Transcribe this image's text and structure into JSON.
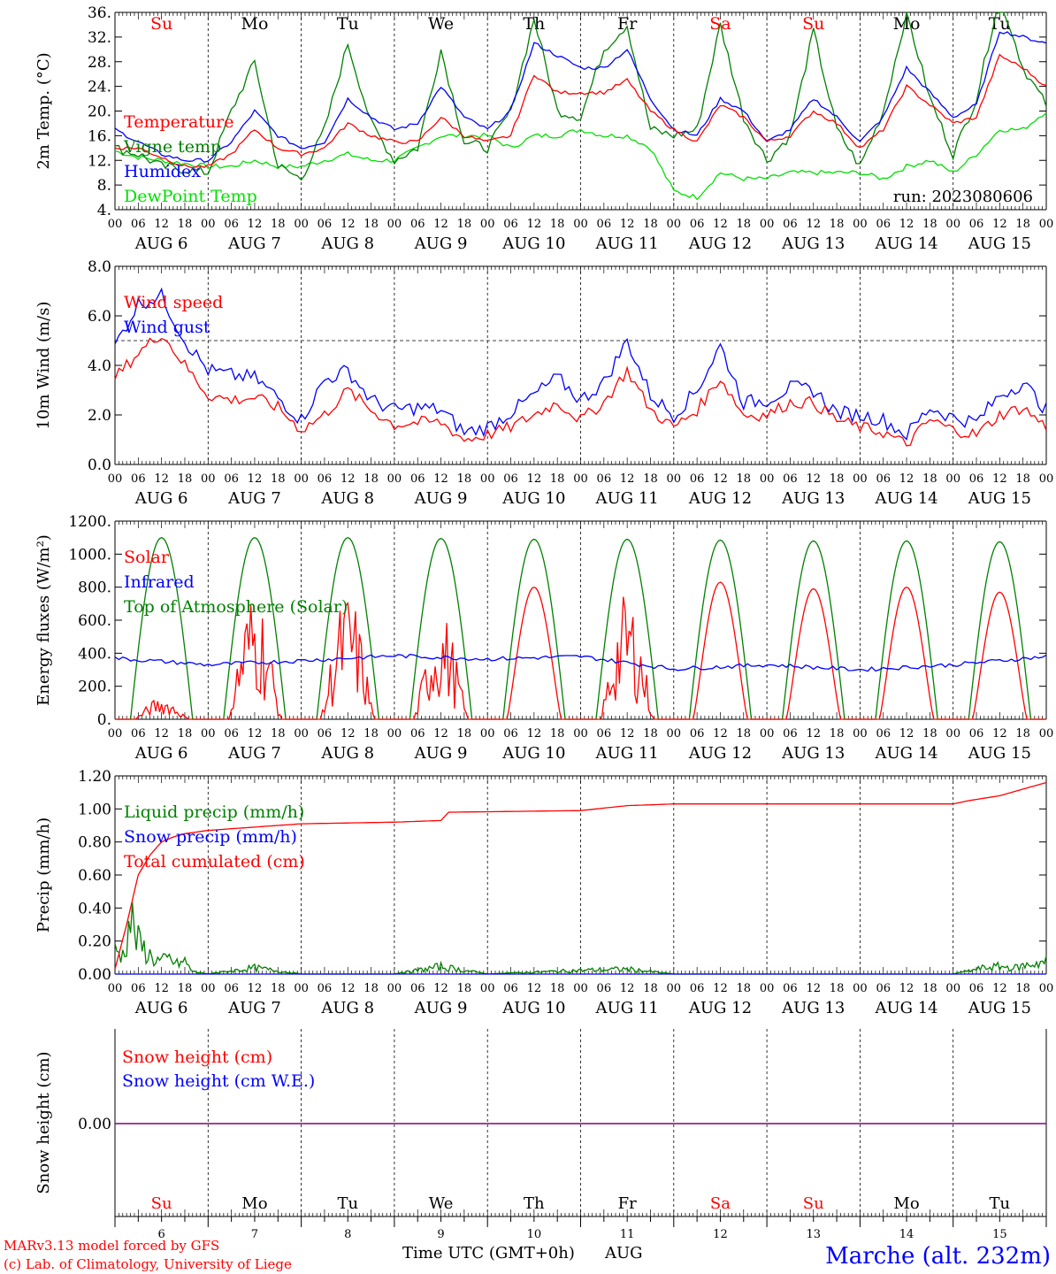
{
  "days": [
    {
      "abbr": "Su",
      "date": "AUG  6",
      "num": "6",
      "weekend": true
    },
    {
      "abbr": "Mo",
      "date": "AUG  7",
      "num": "7",
      "weekend": false
    },
    {
      "abbr": "Tu",
      "date": "AUG  8",
      "num": "8",
      "weekend": false
    },
    {
      "abbr": "We",
      "date": "AUG  9",
      "num": "9",
      "weekend": false
    },
    {
      "abbr": "Th",
      "date": "AUG 10",
      "num": "10",
      "weekend": false
    },
    {
      "abbr": "Fr",
      "date": "AUG 11",
      "num": "11",
      "weekend": false
    },
    {
      "abbr": "Sa",
      "date": "AUG 12",
      "num": "12",
      "weekend": true
    },
    {
      "abbr": "Su",
      "date": "AUG 13",
      "num": "13",
      "weekend": true
    },
    {
      "abbr": "Mo",
      "date": "AUG 14",
      "num": "14",
      "weekend": false
    },
    {
      "abbr": "Tu",
      "date": "AUG 15",
      "num": "15",
      "weekend": false
    }
  ],
  "hour_ticks": [
    "00",
    "06",
    "12",
    "18"
  ],
  "final_hour_tick": "00",
  "colors": {
    "red": "#ff0000",
    "green": "#008000",
    "blue": "#0000ff",
    "lightgreen": "#00e000",
    "purple": "#800080",
    "weekend": "#ff0000",
    "weekday": "#000000"
  },
  "footer": {
    "model": "MARv3.13 model forced by GFS",
    "lab": "(c) Lab. of Climatology, University of Liege",
    "axis_title": "Time UTC (GMT+0h)",
    "month": "AUG",
    "station": "Marche (alt. 232m)"
  },
  "chart_data": [
    {
      "type": "line",
      "ylabel": "2m Temp. (°C)",
      "ylim": [
        4,
        36
      ],
      "yticks": [
        4,
        8,
        12,
        16,
        20,
        24,
        28,
        32,
        36
      ],
      "ytick_labels": [
        "4.",
        "8.",
        "12.",
        "16.",
        "20.",
        "24.",
        "28.",
        "32.",
        "36."
      ],
      "annotation": "run: 2023080606",
      "x_unit": "hours since AUG 6 00 UTC",
      "series": [
        {
          "name": "Temperature",
          "color": "#ff0000",
          "x": [
            0,
            6,
            12,
            18,
            24,
            30,
            36,
            42,
            48,
            54,
            60,
            66,
            72,
            78,
            84,
            90,
            96,
            102,
            108,
            114,
            120,
            126,
            132,
            138,
            144,
            150,
            156,
            162,
            168,
            174,
            180,
            186,
            192,
            198,
            204,
            210,
            216,
            222,
            228,
            234,
            240
          ],
          "y": [
            14,
            14,
            12.5,
            11,
            11,
            13,
            17,
            14,
            13,
            14,
            18,
            16,
            15,
            15,
            19,
            16,
            15,
            16,
            26,
            23,
            23,
            23,
            25,
            20,
            17,
            15,
            21,
            19,
            15,
            16,
            20,
            18,
            14,
            17,
            24,
            21,
            18,
            19,
            29,
            27,
            24
          ]
        },
        {
          "name": "Vigne temp",
          "color": "#008000",
          "x": [
            0,
            6,
            12,
            18,
            24,
            30,
            36,
            42,
            48,
            54,
            60,
            66,
            72,
            78,
            84,
            90,
            96,
            102,
            108,
            114,
            120,
            126,
            132,
            138,
            144,
            150,
            156,
            162,
            168,
            174,
            180,
            186,
            192,
            198,
            204,
            210,
            216,
            222,
            228,
            234,
            240
          ],
          "y": [
            14,
            13,
            11,
            10.5,
            10,
            20,
            28,
            11,
            9,
            17,
            31,
            18,
            12,
            14,
            30,
            15,
            14,
            20,
            35,
            20,
            19,
            30,
            34,
            17,
            16,
            17,
            34,
            19,
            12,
            16,
            33,
            17,
            11,
            20,
            36,
            22,
            13,
            22,
            39,
            27,
            21
          ]
        },
        {
          "name": "Humidex",
          "color": "#0000ff",
          "x": [
            0,
            6,
            12,
            18,
            24,
            30,
            36,
            42,
            48,
            54,
            60,
            66,
            72,
            78,
            84,
            90,
            96,
            102,
            108,
            114,
            120,
            126,
            132,
            138,
            144,
            150,
            156,
            162,
            168,
            174,
            180,
            186,
            192,
            198,
            204,
            210,
            216,
            222,
            228,
            234,
            240
          ],
          "y": [
            17,
            15,
            13,
            12,
            12,
            15,
            20,
            16,
            14,
            15,
            22,
            19,
            17,
            18,
            24,
            19,
            17,
            20,
            31,
            29,
            27,
            27,
            30,
            22,
            17,
            16,
            22,
            20,
            15,
            17,
            22,
            19,
            15,
            19,
            27,
            23,
            19,
            21,
            33,
            32,
            31
          ]
        },
        {
          "name": "DewPoint Temp",
          "color": "#00e000",
          "x": [
            0,
            6,
            12,
            18,
            24,
            30,
            36,
            42,
            48,
            54,
            60,
            66,
            72,
            78,
            84,
            90,
            96,
            102,
            108,
            114,
            120,
            126,
            132,
            138,
            144,
            150,
            156,
            162,
            168,
            174,
            180,
            186,
            192,
            198,
            204,
            210,
            216,
            222,
            228,
            234,
            240
          ],
          "y": [
            13.5,
            12.5,
            12,
            11.5,
            11,
            11,
            12,
            11,
            11,
            12,
            13,
            12,
            12,
            14,
            16,
            16,
            16,
            14,
            16,
            16,
            17,
            16,
            16,
            14,
            7,
            6,
            10,
            9,
            9,
            10,
            10,
            10,
            10,
            9,
            11,
            12,
            10,
            13,
            17,
            17,
            20
          ]
        }
      ]
    },
    {
      "type": "line",
      "ylabel": "10m Wind (m/s)",
      "ylim": [
        0,
        8
      ],
      "yticks": [
        0,
        2,
        4,
        6,
        8
      ],
      "ytick_labels": [
        "0.0",
        "2.0",
        "4.0",
        "6.0",
        "8.0"
      ],
      "reference_line": 5,
      "x_unit": "hours since AUG 6 00 UTC",
      "series": [
        {
          "name": "Wind speed",
          "color": "#ff0000",
          "x": [
            0,
            6,
            12,
            18,
            24,
            30,
            36,
            42,
            48,
            54,
            60,
            66,
            72,
            78,
            84,
            90,
            96,
            102,
            108,
            114,
            120,
            126,
            132,
            138,
            144,
            150,
            156,
            162,
            168,
            174,
            180,
            186,
            192,
            198,
            204,
            210,
            216,
            222,
            228,
            234,
            240
          ],
          "y": [
            3.5,
            4.5,
            5.3,
            4,
            2.8,
            2.6,
            2.7,
            2.3,
            1.4,
            2,
            3,
            2.2,
            1.6,
            1.7,
            1.7,
            1,
            1.2,
            1.5,
            2,
            2.5,
            1.8,
            2.5,
            3.8,
            2.2,
            1.5,
            2.2,
            3.5,
            2,
            2,
            2.5,
            2.5,
            1.8,
            1.5,
            1.3,
            0.8,
            1.8,
            1.4,
            1.2,
            2,
            2.3,
            1.5
          ]
        },
        {
          "name": "Wind gust",
          "color": "#0000ff",
          "x": [
            0,
            6,
            12,
            18,
            24,
            30,
            36,
            42,
            48,
            54,
            60,
            66,
            72,
            78,
            84,
            90,
            96,
            102,
            108,
            114,
            120,
            126,
            132,
            138,
            144,
            150,
            156,
            162,
            168,
            174,
            180,
            186,
            192,
            198,
            204,
            210,
            216,
            222,
            228,
            234,
            240
          ],
          "y": [
            4.8,
            6.5,
            6.8,
            5,
            3.8,
            3.6,
            3.5,
            2.7,
            1.8,
            3.4,
            3.8,
            2.6,
            2.2,
            2.3,
            2.2,
            1.3,
            1.5,
            2.1,
            2.8,
            3.5,
            2.6,
            3.3,
            5,
            2.8,
            2,
            3,
            4.8,
            2.5,
            2.6,
            3.1,
            3,
            2.1,
            2,
            1.8,
            1.2,
            2.3,
            1.9,
            1.7,
            2.8,
            3.3,
            2.2
          ]
        }
      ]
    },
    {
      "type": "line",
      "ylabel": "Energy fluxes (W/m²)",
      "ylim": [
        0,
        1200
      ],
      "yticks": [
        0,
        200,
        400,
        600,
        800,
        1000,
        1200
      ],
      "ytick_labels": [
        "0.",
        "200.",
        "400.",
        "600.",
        "800.",
        "1000.",
        "1200."
      ],
      "x_unit": "hours since AUG 6 00 UTC",
      "daily_peak_hour_utc": 12,
      "series": [
        {
          "name": "Solar",
          "color": "#ff0000",
          "daily_peaks": [
            180,
            800,
            780,
            660,
            800,
            770,
            830,
            790,
            800,
            770
          ]
        },
        {
          "name": "Infrared",
          "color": "#0000ff",
          "x": [
            0,
            24,
            48,
            72,
            96,
            120,
            144,
            168,
            192,
            216,
            240
          ],
          "y": [
            370,
            330,
            355,
            385,
            365,
            380,
            305,
            330,
            300,
            330,
            380
          ]
        },
        {
          "name": "Top of Atmosphere (Solar)",
          "color": "#008000",
          "daily_peaks": [
            1100,
            1100,
            1100,
            1095,
            1090,
            1090,
            1085,
            1080,
            1080,
            1075
          ]
        }
      ]
    },
    {
      "type": "line",
      "ylabel": "Precip (mm/h)",
      "ylim": [
        0,
        1.2
      ],
      "yticks": [
        0,
        0.2,
        0.4,
        0.6,
        0.8,
        1.0,
        1.2
      ],
      "ytick_labels": [
        "0.00",
        "0.20",
        "0.40",
        "0.60",
        "0.80",
        "1.00",
        "1.20"
      ],
      "x_unit": "hours since AUG 6 00 UTC",
      "series": [
        {
          "name": "Liquid precip (mm/h)",
          "color": "#008000",
          "x": [
            0,
            2,
            4,
            6,
            8,
            10,
            12,
            14,
            16,
            18,
            20,
            24,
            36,
            48,
            72,
            84,
            96,
            120,
            132,
            144,
            216,
            224,
            228,
            232,
            236,
            240
          ],
          "y": [
            0.2,
            0.15,
            0.45,
            0.25,
            0.18,
            0.12,
            0.1,
            0.12,
            0.08,
            0.1,
            0.02,
            0,
            0.05,
            0,
            0,
            0.06,
            0,
            0.03,
            0.04,
            0,
            0,
            0.05,
            0.06,
            0.05,
            0.08,
            0.1
          ]
        },
        {
          "name": "Snow precip (mm/h)",
          "color": "#0000ff",
          "x": [
            0,
            240
          ],
          "y": [
            0,
            0
          ]
        },
        {
          "name": "Total cumulated (cm)",
          "color": "#ff0000",
          "x": [
            0,
            3,
            6,
            9,
            12,
            15,
            18,
            24,
            30,
            36,
            48,
            72,
            84,
            86,
            120,
            132,
            144,
            216,
            220,
            228,
            234,
            240
          ],
          "y": [
            0.03,
            0.3,
            0.6,
            0.72,
            0.8,
            0.83,
            0.85,
            0.87,
            0.88,
            0.89,
            0.91,
            0.92,
            0.93,
            0.98,
            0.99,
            1.02,
            1.03,
            1.03,
            1.05,
            1.08,
            1.12,
            1.16
          ]
        }
      ]
    },
    {
      "type": "line",
      "ylabel": "Snow height (cm)",
      "ytick_labels": [
        "0.00"
      ],
      "x_unit": "hours since AUG 6 00 UTC",
      "series": [
        {
          "name": "Snow height (cm)",
          "color": "#ff0000",
          "x": [
            0,
            240
          ],
          "y": [
            0,
            0
          ]
        },
        {
          "name": "Snow height (cm W.E.)",
          "color": "#0000ff",
          "x": [
            0,
            240
          ],
          "y": [
            0,
            0
          ]
        }
      ]
    }
  ]
}
